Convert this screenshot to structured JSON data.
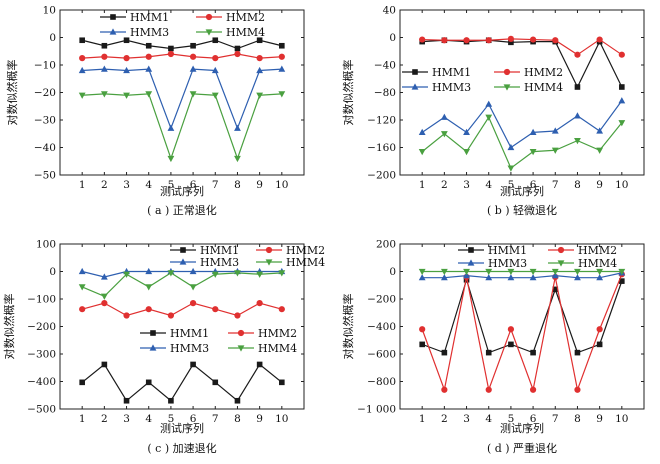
{
  "chart_data": [
    {
      "type": "line",
      "caption": "( a ) 正常退化",
      "xlabel": "测试序列",
      "ylabel": "对数似然概率",
      "x": [
        1,
        2,
        3,
        4,
        5,
        6,
        7,
        8,
        9,
        10
      ],
      "ylim": [
        -50,
        10
      ],
      "yticks": [
        -50,
        -40,
        -30,
        -20,
        -10,
        0,
        10
      ],
      "ytick_labels": [
        "−50",
        "−40",
        "−30",
        "−20",
        "−10",
        "0",
        "10"
      ],
      "legend_layout": "grid-top",
      "series": [
        {
          "name": "HMM1",
          "color": "#1a1a1a",
          "marker": "square",
          "values": [
            -1,
            -3,
            -1,
            -3,
            -4,
            -3,
            -1,
            -4,
            -1,
            -3
          ]
        },
        {
          "name": "HMM2",
          "color": "#e03030",
          "marker": "circle",
          "values": [
            -7.5,
            -7,
            -7.5,
            -7,
            -6,
            -7,
            -7.5,
            -6,
            -7.5,
            -7
          ]
        },
        {
          "name": "HMM3",
          "color": "#2e5fb0",
          "marker": "triangle",
          "values": [
            -12,
            -11.5,
            -12,
            -11.5,
            -33,
            -11.5,
            -12,
            -33,
            -12,
            -11.5
          ]
        },
        {
          "name": "HMM4",
          "color": "#4aa040",
          "marker": "tri-down",
          "values": [
            -21,
            -20.5,
            -21,
            -20.5,
            -44,
            -20.5,
            -21,
            -44,
            -21,
            -20.5
          ]
        }
      ]
    },
    {
      "type": "line",
      "caption": "( b ) 轻微退化",
      "xlabel": "测试序列",
      "ylabel": "对数似然概率",
      "x": [
        1,
        2,
        3,
        4,
        5,
        6,
        7,
        8,
        9,
        10
      ],
      "ylim": [
        -200,
        40
      ],
      "yticks": [
        -200,
        -160,
        -120,
        -80,
        -40,
        0,
        40
      ],
      "ytick_labels": [
        "−200",
        "−160",
        "−120",
        "−80",
        "−40",
        "0",
        "40"
      ],
      "legend_layout": "grid-middle",
      "series": [
        {
          "name": "HMM1",
          "color": "#1a1a1a",
          "marker": "square",
          "values": [
            -6,
            -4,
            -6,
            -4,
            -7,
            -6,
            -6,
            -72,
            -6,
            -72
          ]
        },
        {
          "name": "HMM2",
          "color": "#e03030",
          "marker": "circle",
          "values": [
            -3,
            -4,
            -4,
            -4,
            -2,
            -3,
            -4,
            -25,
            -3,
            -25
          ]
        },
        {
          "name": "HMM3",
          "color": "#2e5fb0",
          "marker": "triangle",
          "values": [
            -138,
            -116,
            -138,
            -97,
            -160,
            -138,
            -136,
            -114,
            -136,
            -92
          ]
        },
        {
          "name": "HMM4",
          "color": "#4aa040",
          "marker": "tri-down",
          "values": [
            -166,
            -140,
            -166,
            -116,
            -190,
            -166,
            -164,
            -150,
            -164,
            -124
          ]
        }
      ]
    },
    {
      "type": "line",
      "caption": "( c ) 加速退化",
      "xlabel": "测试序列",
      "ylabel": "对数似然概率",
      "x": [
        1,
        2,
        3,
        4,
        5,
        6,
        7,
        8,
        9,
        10
      ],
      "ylim": [
        -500,
        100
      ],
      "yticks": [
        -500,
        -400,
        -300,
        -200,
        -100,
        0,
        100
      ],
      "ytick_labels": [
        "−500",
        "−400",
        "−300",
        "−200",
        "−100",
        "0",
        "100"
      ],
      "legend_layout": "duplicated",
      "series": [
        {
          "name": "HMM1",
          "color": "#1a1a1a",
          "marker": "square",
          "values": [
            -403,
            -338,
            -470,
            -403,
            -470,
            -338,
            -403,
            -470,
            -338,
            -403
          ]
        },
        {
          "name": "HMM2",
          "color": "#e03030",
          "marker": "circle",
          "values": [
            -137,
            -115,
            -160,
            -137,
            -160,
            -115,
            -137,
            -160,
            -115,
            -137
          ]
        },
        {
          "name": "HMM3",
          "color": "#2e5fb0",
          "marker": "triangle",
          "values": [
            0,
            -20,
            0,
            0,
            0,
            0,
            0,
            0,
            0,
            0
          ]
        },
        {
          "name": "HMM4",
          "color": "#4aa040",
          "marker": "tri-down",
          "values": [
            -56,
            -90,
            -10,
            -56,
            -5,
            -56,
            -10,
            -5,
            -10,
            -5
          ]
        }
      ]
    },
    {
      "type": "line",
      "caption": "( d ) 严重退化",
      "xlabel": "测试序列",
      "ylabel": "对数似然概率",
      "x": [
        1,
        2,
        3,
        4,
        5,
        6,
        7,
        8,
        9,
        10
      ],
      "ylim": [
        -1000,
        200
      ],
      "yticks": [
        -1000,
        -800,
        -600,
        -400,
        -200,
        0,
        200
      ],
      "ytick_labels": [
        "−1 000",
        "−800",
        "−600",
        "−400",
        "−200",
        "0",
        "200"
      ],
      "legend_layout": "grid-top",
      "series": [
        {
          "name": "HMM1",
          "color": "#1a1a1a",
          "marker": "square",
          "values": [
            -530,
            -590,
            -60,
            -590,
            -530,
            -590,
            -130,
            -590,
            -530,
            -70
          ]
        },
        {
          "name": "HMM2",
          "color": "#e03030",
          "marker": "circle",
          "values": [
            -420,
            -860,
            -40,
            -860,
            -420,
            -860,
            -40,
            -860,
            -420,
            -20
          ]
        },
        {
          "name": "HMM3",
          "color": "#2e5fb0",
          "marker": "triangle",
          "values": [
            -45,
            -45,
            -30,
            -45,
            -45,
            -45,
            -30,
            -45,
            -45,
            -10
          ]
        },
        {
          "name": "HMM4",
          "color": "#4aa040",
          "marker": "tri-down",
          "values": [
            0,
            0,
            0,
            0,
            0,
            0,
            0,
            0,
            0,
            0
          ]
        }
      ]
    }
  ]
}
